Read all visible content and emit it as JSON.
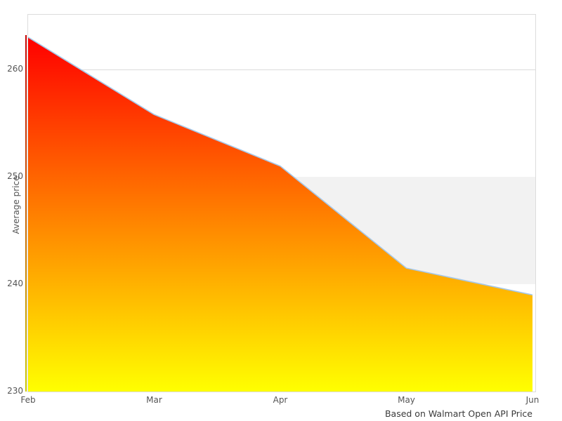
{
  "chart_data": {
    "type": "area",
    "x": [
      "Feb",
      "Mar",
      "Apr",
      "May",
      "Jun"
    ],
    "values": [
      263,
      255.8,
      251,
      241.5,
      239
    ],
    "series_name": "Average price",
    "title": "",
    "xlabel": "",
    "ylabel": "Average price",
    "ylim": [
      230,
      265.1
    ],
    "yticks": [
      230,
      240,
      250,
      260
    ],
    "gridlines_at": [
      260
    ],
    "shaded_band": [
      240,
      250
    ],
    "grid": "horizontal-only",
    "legend": "none",
    "caption": "Based on Walmart Open API Price",
    "colors": {
      "area_gradient_top": "#ff0000",
      "area_gradient_bottom": "#ffff00",
      "line": "#a6c8e8",
      "band_fill": "#f2f2f2",
      "gridline": "#dcdcdc",
      "border": "#dcdcdc",
      "tick_text": "#555555",
      "caption_text": "#3a3a3a",
      "left_edge_top": "#c80000",
      "left_edge_mid": "#c86400",
      "left_edge_bottom": "#c8c800"
    }
  }
}
